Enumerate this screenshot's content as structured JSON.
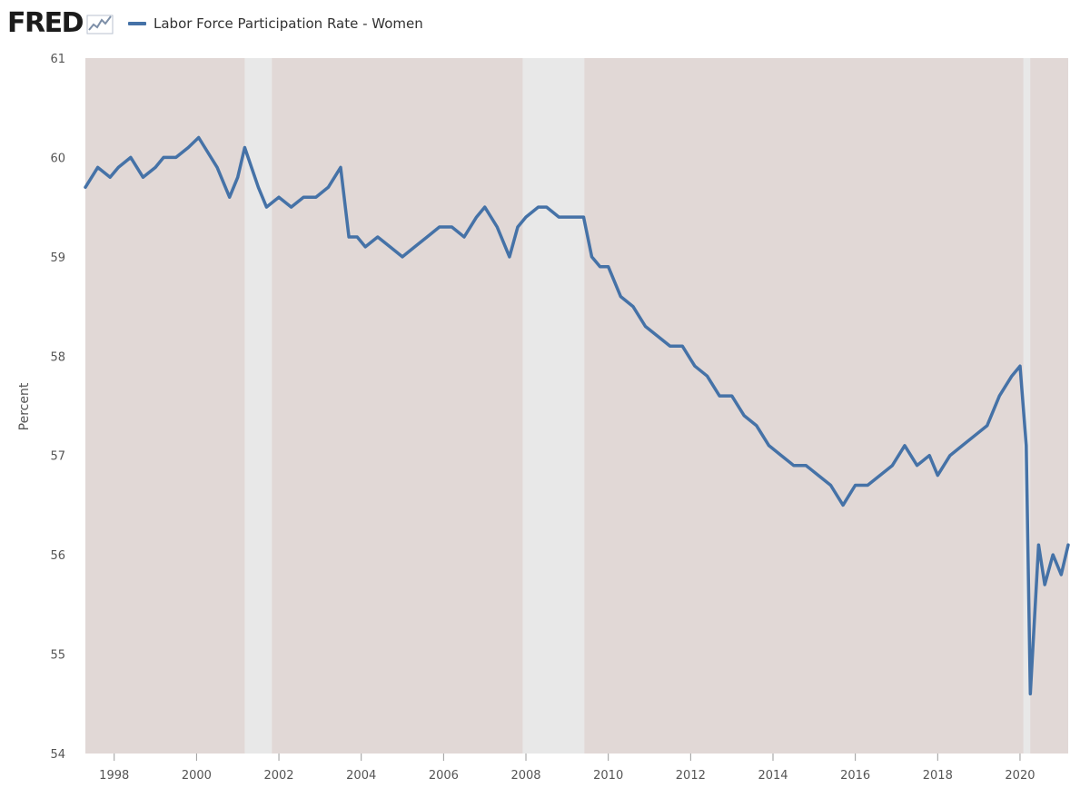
{
  "header": {
    "logo_text": "FRED",
    "logo_mark_icon": "trend-line-icon",
    "series_color": "#4572a7"
  },
  "chart_data": {
    "type": "line",
    "title": "",
    "ylabel": "Percent",
    "xlabel": "",
    "xlim": [
      1997.3,
      2021.17
    ],
    "ylim": [
      54,
      61
    ],
    "x_ticks": [
      "1998",
      "2000",
      "2002",
      "2004",
      "2006",
      "2008",
      "2010",
      "2012",
      "2014",
      "2016",
      "2018",
      "2020"
    ],
    "y_ticks": [
      "54",
      "55",
      "56",
      "57",
      "58",
      "59",
      "60",
      "61"
    ],
    "plot_background": "#e1d8d6",
    "recession_color": "#e8e8e8",
    "recessions": [
      [
        2001.17,
        2001.83
      ],
      [
        2007.92,
        2009.42
      ],
      [
        2020.08,
        2020.25
      ]
    ],
    "series": [
      {
        "name": "Labor Force Participation Rate - Women",
        "color": "#4572a7",
        "x": [
          1997.3,
          1997.6,
          1997.9,
          1998.1,
          1998.4,
          1998.7,
          1999.0,
          1999.2,
          1999.5,
          1999.8,
          2000.05,
          2000.2,
          2000.5,
          2000.8,
          2001.0,
          2001.17,
          2001.5,
          2001.7,
          2002.0,
          2002.3,
          2002.6,
          2002.9,
          2003.2,
          2003.5,
          2003.7,
          2003.9,
          2004.1,
          2004.4,
          2004.7,
          2005.0,
          2005.3,
          2005.6,
          2005.9,
          2006.2,
          2006.5,
          2006.8,
          2007.0,
          2007.3,
          2007.6,
          2007.8,
          2008.0,
          2008.3,
          2008.5,
          2008.8,
          2009.1,
          2009.4,
          2009.6,
          2009.8,
          2010.0,
          2010.3,
          2010.6,
          2010.9,
          2011.2,
          2011.5,
          2011.8,
          2012.1,
          2012.4,
          2012.7,
          2013.0,
          2013.3,
          2013.6,
          2013.9,
          2014.2,
          2014.5,
          2014.8,
          2015.1,
          2015.4,
          2015.7,
          2016.0,
          2016.3,
          2016.6,
          2016.9,
          2017.2,
          2017.5,
          2017.8,
          2018.0,
          2018.3,
          2018.6,
          2018.9,
          2019.2,
          2019.5,
          2019.8,
          2020.0,
          2020.15,
          2020.25,
          2020.45,
          2020.6,
          2020.8,
          2021.0,
          2021.17
        ],
        "values": [
          59.7,
          59.9,
          59.8,
          59.9,
          60.0,
          59.8,
          59.9,
          60.0,
          60.0,
          60.1,
          60.2,
          60.1,
          59.9,
          59.6,
          59.8,
          60.1,
          59.7,
          59.5,
          59.6,
          59.5,
          59.6,
          59.6,
          59.7,
          59.9,
          59.2,
          59.2,
          59.1,
          59.2,
          59.1,
          59.0,
          59.1,
          59.2,
          59.3,
          59.3,
          59.2,
          59.4,
          59.5,
          59.3,
          59.0,
          59.3,
          59.4,
          59.5,
          59.5,
          59.4,
          59.4,
          59.4,
          59.0,
          58.9,
          58.9,
          58.6,
          58.5,
          58.3,
          58.2,
          58.1,
          58.1,
          57.9,
          57.8,
          57.6,
          57.6,
          57.4,
          57.3,
          57.1,
          57.0,
          56.9,
          56.9,
          56.8,
          56.7,
          56.5,
          56.7,
          56.7,
          56.8,
          56.9,
          57.1,
          56.9,
          57.0,
          56.8,
          57.0,
          57.1,
          57.2,
          57.3,
          57.6,
          57.8,
          57.9,
          57.1,
          54.6,
          56.1,
          55.7,
          56.0,
          55.8,
          56.1
        ]
      }
    ]
  }
}
